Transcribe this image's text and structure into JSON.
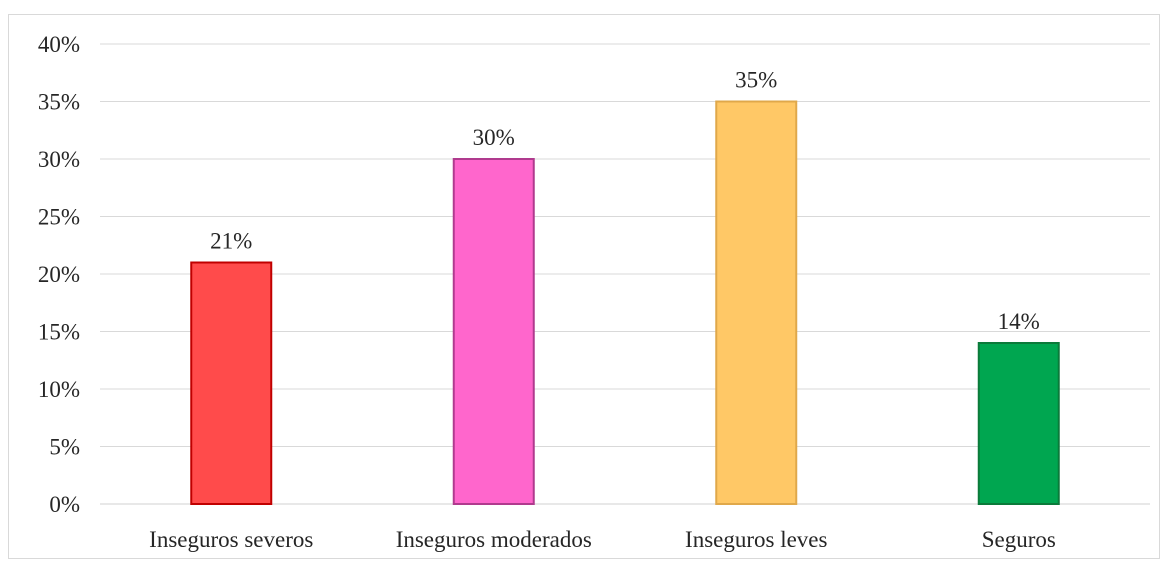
{
  "chart_data": {
    "type": "bar",
    "categories": [
      "Inseguros severos",
      "Inseguros moderados",
      "Inseguros leves",
      "Seguros"
    ],
    "values": [
      21,
      30,
      35,
      14
    ],
    "value_labels": [
      "21%",
      "30%",
      "35%",
      "14%"
    ],
    "y_unit": "%",
    "ylim": [
      0,
      40
    ],
    "y_ticks": [
      0,
      5,
      10,
      15,
      20,
      25,
      30,
      35,
      40
    ],
    "y_tick_labels": [
      "0%",
      "5%",
      "10%",
      "15%",
      "20%",
      "25%",
      "30%",
      "35%",
      "40%"
    ],
    "grid": true,
    "legend": "none",
    "colors": {
      "fills": [
        "#ff4b4b",
        "#ff66cc",
        "#ffc866",
        "#00a650"
      ],
      "strokes": [
        "#c00000",
        "#b03a8e",
        "#e0a84a",
        "#0b7a3a"
      ]
    }
  }
}
